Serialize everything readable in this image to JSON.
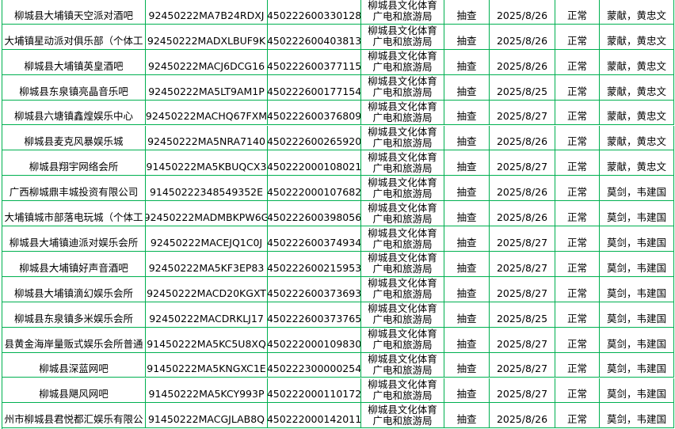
{
  "table": {
    "rows": [
      [
        "柳城县大埔镇天空派对酒吧",
        "92450222MA7B24RDXJ",
        "450222600330128",
        [
          "柳城县文化体育",
          "广电和旅游局"
        ],
        "抽查",
        "2025/8/26",
        "正常",
        "蒙献，黄忠文"
      ],
      [
        "大埔镇星动派对俱乐部（个体工",
        "92450222MADXLBUF9K",
        "450222600403813",
        [
          "柳城县文化体育",
          "广电和旅游局"
        ],
        "抽查",
        "2025/8/26",
        "正常",
        "蒙献，黄忠文"
      ],
      [
        "柳城县大埔镇英皇酒吧",
        "92450222MACJ6DCG16",
        "450222600377115",
        [
          "柳城县文化体育",
          "广电和旅游局"
        ],
        "抽查",
        "2025/8/26",
        "正常",
        "蒙献，黄忠文"
      ],
      [
        "柳城县东泉镇亮晶音乐吧",
        "92450222MA5LT9AM1P",
        "450222600177154",
        [
          "柳城县文化体育",
          "广电和旅游局"
        ],
        "抽查",
        "2025/8/25",
        "正常",
        "蒙献，黄忠文"
      ],
      [
        "柳城县六塘镇鑫煌娱乐中心",
        "92450222MACHQ67FXM",
        "450222600376809",
        [
          "柳城县文化体育",
          "广电和旅游局"
        ],
        "抽查",
        "2025/8/27",
        "正常",
        "蒙献，黄忠文"
      ],
      [
        "柳城县麦克风暴娱乐城",
        "92450222MA5NRA7140",
        "450222600265920",
        [
          "柳城县文化体育",
          "广电和旅游局"
        ],
        "抽查",
        "2025/8/26",
        "正常",
        "蒙献，黄忠文"
      ],
      [
        "柳城县翔宇网络会所",
        "91450222MA5KBUQCX3",
        "450222000108021",
        [
          "柳城县文化体育",
          "广电和旅游局"
        ],
        "抽查",
        "2025/8/27",
        "正常",
        "蒙献，黄忠文"
      ],
      [
        "广西柳城鼎丰城投资有限公司",
        "91450222348549352E",
        "450222000107682",
        [
          "柳城县文化体育",
          "广电和旅游局"
        ],
        "抽查",
        "2025/8/26",
        "正常",
        "莫剑，韦建国"
      ],
      [
        "大埔镇城市部落电玩城（个体工",
        "92450222MADMBKPW6G",
        "450222600398056",
        [
          "柳城县文化体育",
          "广电和旅游局"
        ],
        "抽查",
        "2025/8/26",
        "正常",
        "莫剑，韦建国"
      ],
      [
        "柳城县大埔镇迪派对娱乐会所",
        "92450222MACEJQ1C0J",
        "450222600374934",
        [
          "柳城县文化体育",
          "广电和旅游局"
        ],
        "抽查",
        "2025/8/27",
        "正常",
        "莫剑，韦建国"
      ],
      [
        "柳城县大埔镇好声音酒吧",
        "92450222MA5KF3EP83",
        "450222600215953",
        [
          "柳城县文化体育",
          "广电和旅游局"
        ],
        "抽查",
        "2025/8/27",
        "正常",
        "莫剑，韦建国"
      ],
      [
        "柳城县大埔镇滴幻娱乐会所",
        "92450222MACD20KGXT",
        "450222600373693",
        [
          "柳城县文化体育",
          "广电和旅游局"
        ],
        "抽查",
        "2025/8/27",
        "正常",
        "莫剑，韦建国"
      ],
      [
        "柳城县东泉镇多米娱乐会所",
        "92450222MACDRKLJ17",
        "450222600373765",
        [
          "柳城县文化体育",
          "广电和旅游局"
        ],
        "抽查",
        "2025/8/25",
        "正常",
        "莫剑，韦建国"
      ],
      [
        "县黄金海岸量贩式娱乐会所普通",
        "91450222MA5KC5U8XQ",
        "450222000109830",
        [
          "柳城县文化体育",
          "广电和旅游局"
        ],
        "抽查",
        "2025/8/27",
        "正常",
        "莫剑，韦建国"
      ],
      [
        "柳城县深蓝网吧",
        "91450222MA5KNGXC1E",
        "450222300000254",
        [
          "柳城县文化体育",
          "广电和旅游局"
        ],
        "抽查",
        "2025/8/27",
        "正常",
        "莫剑，韦建国"
      ],
      [
        "柳城县飓风网吧",
        "91450222MA5KCY993P",
        "450222000110172",
        [
          "柳城县文化体育",
          "广电和旅游局"
        ],
        "抽查",
        "2025/8/27",
        "正常",
        "莫剑，韦建国"
      ],
      [
        "州市柳城县君悦都汇娱乐有限公",
        "91450222MACGJLAB8Q",
        "450222000142011",
        [
          "柳城县文化体育",
          "广电和旅游局"
        ],
        "抽查",
        "2025/8/26",
        "正常",
        "莫剑，韦建国"
      ]
    ]
  }
}
